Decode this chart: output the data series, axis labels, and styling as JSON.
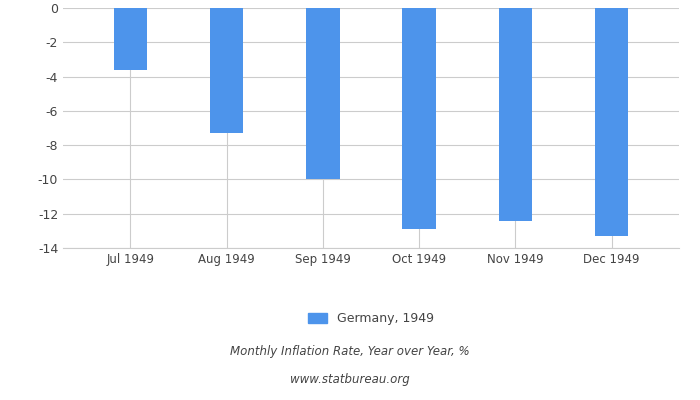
{
  "categories": [
    "Jul 1949",
    "Aug 1949",
    "Sep 1949",
    "Oct 1949",
    "Nov 1949",
    "Dec 1949"
  ],
  "values": [
    -3.6,
    -7.3,
    -10.0,
    -12.9,
    -12.4,
    -13.3
  ],
  "bar_color": "#4d94eb",
  "ylim": [
    -14,
    0
  ],
  "yticks": [
    0,
    -2,
    -4,
    -6,
    -8,
    -10,
    -12,
    -14
  ],
  "legend_label": "Germany, 1949",
  "subtitle1": "Monthly Inflation Rate, Year over Year, %",
  "subtitle2": "www.statbureau.org",
  "background_color": "#ffffff",
  "grid_color": "#cccccc",
  "bar_width": 0.35
}
